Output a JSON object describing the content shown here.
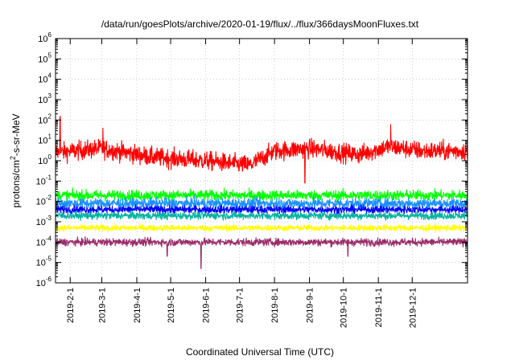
{
  "chart_data": {
    "type": "line",
    "title": "/data/run/goesPlots/archive/2020-01-19/flux/../flux/366daysMoonFluxes.txt",
    "xlabel": "Coordinated Universal Time (UTC)",
    "ylabel": "protons/cm²-s-sr-MeV",
    "ylabel_parts": {
      "base": "protons/cm",
      "sup": "2",
      "tail": "-s-sr-MeV"
    },
    "yscale": "log",
    "ylim": [
      1e-06,
      1000000.0
    ],
    "ytick_exponents": [
      -6,
      -5,
      -4,
      -3,
      -2,
      -1,
      0,
      1,
      2,
      3,
      4,
      5,
      6
    ],
    "ytick_base": "10",
    "x_range": [
      "2019-01-19",
      "2020-01-19"
    ],
    "x_ticks": [
      {
        "date": "2019-02-01",
        "label": "2019-2-1"
      },
      {
        "date": "2019-03-01",
        "label": "2019-3-1"
      },
      {
        "date": "2019-04-01",
        "label": "2019-4-1"
      },
      {
        "date": "2019-05-01",
        "label": "2019-5-1"
      },
      {
        "date": "2019-06-01",
        "label": "2019-6-1"
      },
      {
        "date": "2019-07-01",
        "label": "2019-7-1"
      },
      {
        "date": "2019-08-01",
        "label": "2019-8-1"
      },
      {
        "date": "2019-09-01",
        "label": "2019-9-1"
      },
      {
        "date": "2019-10-01",
        "label": "2019-10-1"
      },
      {
        "date": "2019-11-01",
        "label": "2019-11-1"
      },
      {
        "date": "2019-12-01",
        "label": "2019-12-1"
      }
    ],
    "grid": true,
    "legend": "none",
    "series": [
      {
        "color": "#ff0000",
        "typical": 2.0,
        "spread_decades": 0.45,
        "trend": [
          [
            "2019-01-19",
            2.5
          ],
          [
            "2019-03-01",
            4.0
          ],
          [
            "2019-04-15",
            1.5
          ],
          [
            "2019-06-01",
            1.0
          ],
          [
            "2019-07-10",
            0.6
          ],
          [
            "2019-08-01",
            3.0
          ],
          [
            "2019-09-01",
            4.0
          ],
          [
            "2019-10-15",
            2.0
          ],
          [
            "2019-11-10",
            5.0
          ],
          [
            "2019-12-10",
            3.0
          ],
          [
            "2020-01-19",
            3.0
          ]
        ],
        "spikes": [
          [
            "2019-01-23",
            150
          ],
          [
            "2019-03-02",
            40
          ],
          [
            "2019-11-12",
            60
          ],
          [
            "2019-08-28",
            0.08
          ]
        ]
      },
      {
        "color": "#00ff00",
        "typical": 0.02,
        "spread_decades": 0.25,
        "trend": [
          [
            "2019-01-19",
            0.02
          ],
          [
            "2020-01-19",
            0.02
          ]
        ],
        "spikes": []
      },
      {
        "color": "#1a90ff",
        "typical": 0.008,
        "spread_decades": 0.25,
        "trend": [
          [
            "2019-01-19",
            0.008
          ],
          [
            "2020-01-19",
            0.008
          ]
        ],
        "spikes": []
      },
      {
        "color": "#0000ff",
        "typical": 0.004,
        "spread_decades": 0.18,
        "trend": [
          [
            "2019-01-19",
            0.004
          ],
          [
            "2020-01-19",
            0.004
          ]
        ],
        "spikes": []
      },
      {
        "color": "#00b3a0",
        "typical": 0.002,
        "spread_decades": 0.18,
        "trend": [
          [
            "2019-01-19",
            0.002
          ],
          [
            "2020-01-19",
            0.002
          ]
        ],
        "spikes": []
      },
      {
        "color": "#ffff00",
        "typical": 0.0005,
        "spread_decades": 0.15,
        "trend": [
          [
            "2019-01-19",
            0.0005
          ],
          [
            "2020-01-19",
            0.0005
          ]
        ],
        "spikes": []
      },
      {
        "color": "#9b2c6a",
        "typical": 0.0001,
        "spread_decades": 0.18,
        "trend": [
          [
            "2019-01-19",
            0.0001
          ],
          [
            "2020-01-19",
            0.0001
          ]
        ],
        "spikes": [
          [
            "2019-05-28",
            5e-06
          ],
          [
            "2019-04-28",
            2e-05
          ],
          [
            "2019-10-05",
            2e-05
          ]
        ]
      }
    ]
  }
}
